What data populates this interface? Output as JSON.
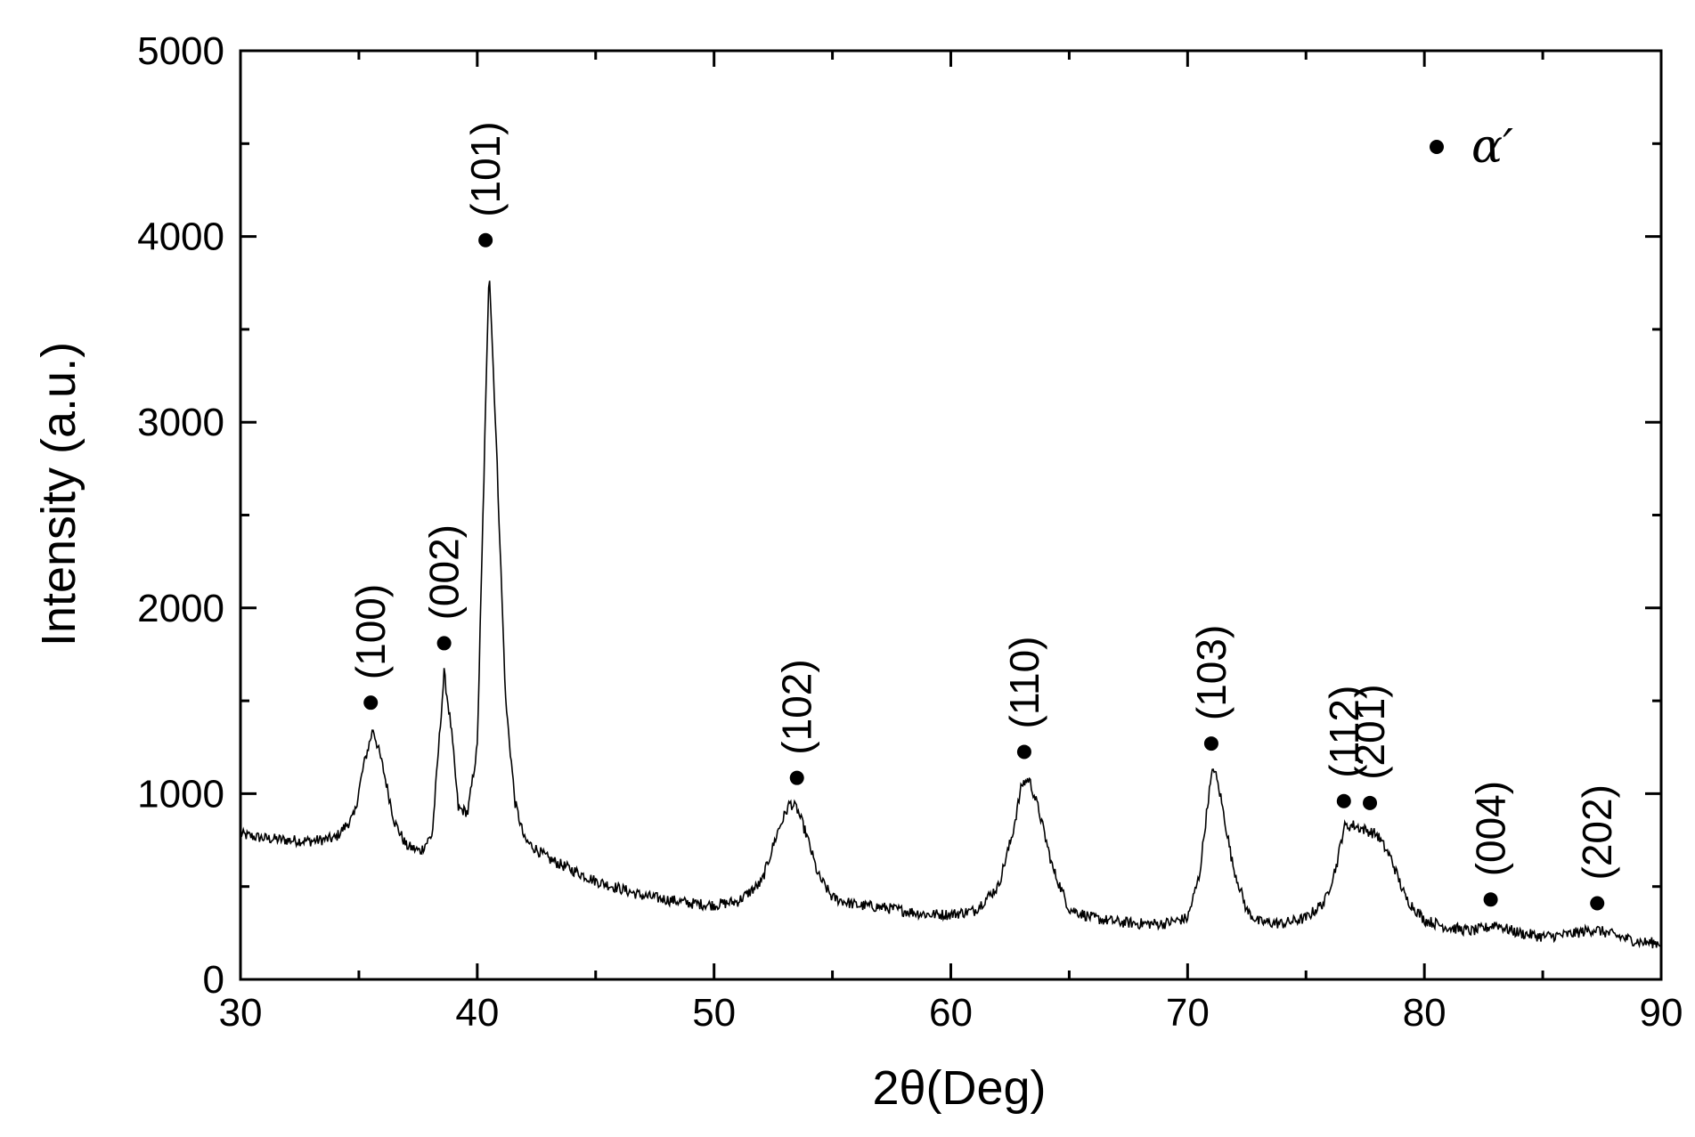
{
  "chart_data": {
    "type": "line",
    "title": "",
    "xlabel": "2θ(Deg)",
    "ylabel": "Intensity (a.u.)",
    "xlim": [
      30,
      90
    ],
    "ylim": [
      0,
      5000
    ],
    "x_ticks": [
      "30",
      "40",
      "50",
      "60",
      "70",
      "80",
      "90"
    ],
    "y_ticks": [
      "0",
      "1000",
      "2000",
      "3000",
      "4000",
      "5000"
    ],
    "grid": false,
    "legend": {
      "placement": "top-right",
      "marker": "filled-circle",
      "label": "α′"
    },
    "series": [
      {
        "x": [
          30,
          31,
          32,
          33,
          34,
          34.8,
          35.2,
          35.6,
          36.0,
          36.5,
          37,
          37.6,
          38.1,
          38.6,
          38.9,
          39.2,
          39.6,
          40.0,
          40.3,
          40.5,
          40.8,
          41.2,
          41.6,
          42,
          43,
          44,
          45,
          46,
          47,
          48,
          49,
          50,
          51,
          52,
          52.7,
          53.2,
          53.5,
          53.9,
          54.4,
          55,
          56,
          57,
          58,
          59,
          60,
          61,
          62,
          62.6,
          63.0,
          63.3,
          63.7,
          64.3,
          65,
          66,
          67,
          68,
          69,
          70,
          70.5,
          70.9,
          71.1,
          71.4,
          71.9,
          72.5,
          73,
          74,
          75,
          75.8,
          76.3,
          76.6,
          77.0,
          77.6,
          78.0,
          78.6,
          79.2,
          80,
          81,
          82,
          82.7,
          83.0,
          83.5,
          84,
          85,
          86,
          86.8,
          87.2,
          87.7,
          88.5,
          89.2,
          90
        ],
        "y": [
          780,
          760,
          750,
          745,
          760,
          880,
          1150,
          1350,
          1150,
          850,
          720,
          690,
          780,
          1650,
          1350,
          920,
          900,
          1250,
          2800,
          3850,
          2900,
          1500,
          950,
          750,
          650,
          590,
          530,
          490,
          450,
          430,
          410,
          400,
          420,
          520,
          800,
          950,
          920,
          780,
          560,
          440,
          400,
          390,
          370,
          350,
          350,
          370,
          500,
          780,
          1050,
          1080,
          920,
          600,
          380,
          330,
          310,
          300,
          300,
          330,
          560,
          1000,
          1150,
          980,
          620,
          370,
          310,
          300,
          330,
          420,
          620,
          820,
          830,
          800,
          780,
          650,
          440,
          320,
          280,
          260,
          280,
          300,
          270,
          250,
          230,
          240,
          260,
          270,
          250,
          220,
          200,
          195
        ]
      }
    ],
    "annotations": [
      {
        "label": "(100)",
        "x": 35.5,
        "y": 1490
      },
      {
        "label": "(002)",
        "x": 38.6,
        "y": 1810
      },
      {
        "label": "(101)",
        "x": 40.35,
        "y": 3980
      },
      {
        "label": "(102)",
        "x": 53.5,
        "y": 1085
      },
      {
        "label": "(110)",
        "x": 63.1,
        "y": 1225
      },
      {
        "label": "(103)",
        "x": 71.0,
        "y": 1270
      },
      {
        "label": "(112)",
        "x": 76.6,
        "y": 960
      },
      {
        "label": "(201)",
        "x": 77.7,
        "y": 950
      },
      {
        "label": "(004)",
        "x": 82.8,
        "y": 430
      },
      {
        "label": "(202)",
        "x": 87.3,
        "y": 410
      }
    ]
  }
}
